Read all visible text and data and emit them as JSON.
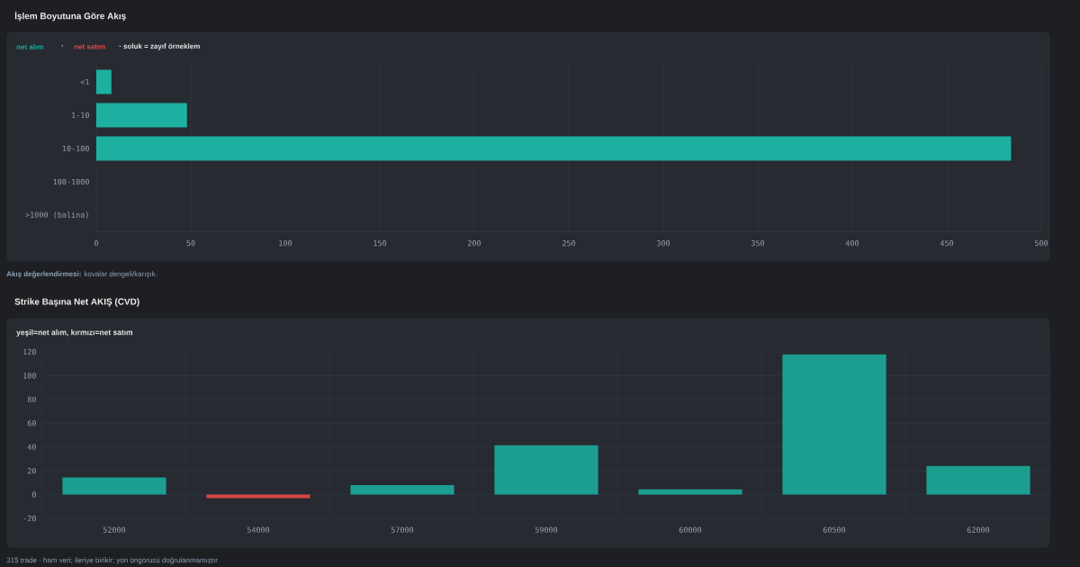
{
  "chart_data": [
    {
      "type": "bar",
      "orientation": "horizontal",
      "title": "İşlem Boyutuna Göre Akış",
      "categories": [
        "<1",
        "1-10",
        "10-100",
        "100-1000",
        ">1000 (balina)"
      ],
      "series": [
        {
          "name": "net alım",
          "color": "#1db0a0",
          "values": [
            8,
            48,
            484,
            null,
            null
          ]
        },
        {
          "name": "net satım",
          "color": "#e5484d",
          "values": [
            null,
            null,
            null,
            null,
            null
          ]
        }
      ],
      "xlim": [
        0,
        500
      ],
      "xticks": [
        0,
        50,
        100,
        150,
        200,
        250,
        300,
        350,
        400,
        450,
        500
      ],
      "grid": "x",
      "legend": "top left",
      "annotations": [
        "·",
        "· soluk = zayıf örneklem",
        "**Akış değerlendirmesi:** kovalar dengeli/karışık."
      ]
    },
    {
      "type": "bar",
      "title": "Strike Başına Net AKIŞ (CVD)",
      "subtitle": "yeşil=net alım, kırmızı=net satım",
      "categories": [
        "52000",
        "54000",
        "57000",
        "59000",
        "60000",
        "60500",
        "62000"
      ],
      "values": [
        14.5,
        -3,
        8,
        41.5,
        4.4,
        118,
        24
      ],
      "colors": [
        "#1b9e90",
        "#d64545",
        "#1b9e90",
        "#1b9e90",
        "#1b9e90",
        "#1b9e90",
        "#1b9e90"
      ],
      "ylim": [
        -20,
        120
      ],
      "yticks": [
        -20,
        0,
        20,
        40,
        60,
        80,
        100,
        120
      ],
      "grid": true,
      "annotations": [
        "315 trade · ham veri; ileriye birikir; yön öngörüsü doğrulanmamıştır"
      ]
    }
  ]
}
